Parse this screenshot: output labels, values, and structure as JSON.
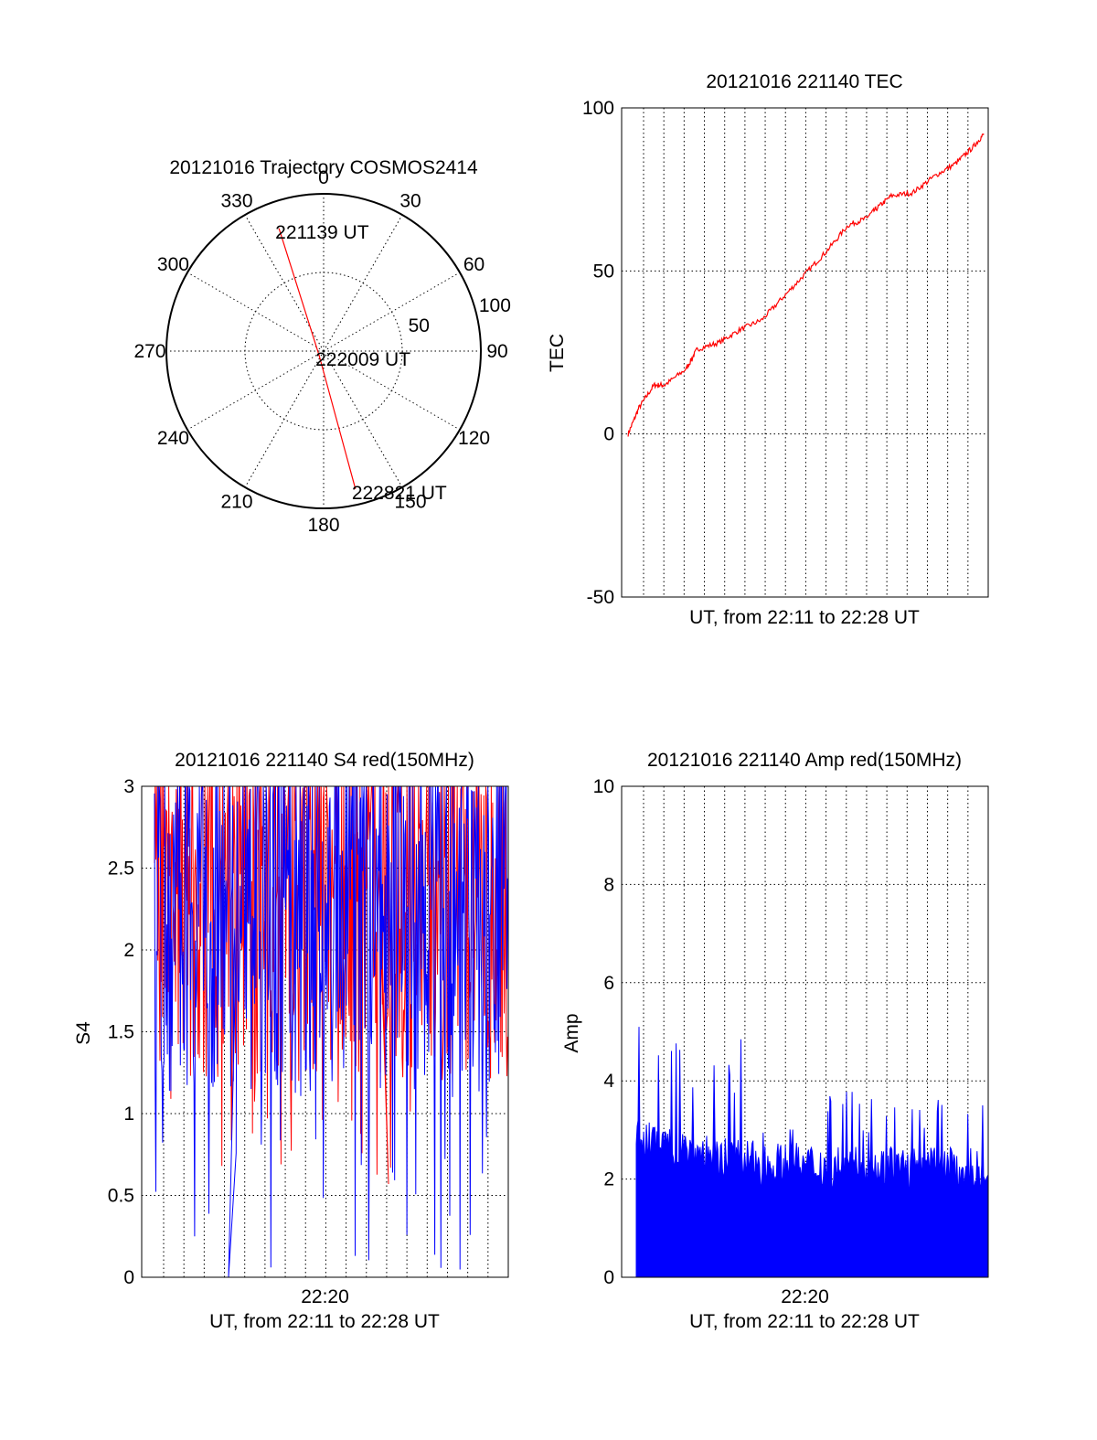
{
  "chart_data": [
    {
      "type": "polar",
      "title": "20121016 Trajectory COSMOS2414",
      "angle_labels": [
        "0",
        "30",
        "60",
        "90",
        "120",
        "150",
        "180",
        "210",
        "240",
        "270",
        "300",
        "330"
      ],
      "radial_labels": [
        "50",
        "100"
      ],
      "rlim": [
        0,
        100
      ],
      "grid": true,
      "series": [
        {
          "color": "#ff0000",
          "points": [
            {
              "az": 340,
              "r": 83,
              "label": "221139 UT"
            },
            {
              "az": 225,
              "r": 4,
              "label": "222009 UT"
            },
            {
              "az": 167,
              "r": 90,
              "label": "222821 UT"
            }
          ]
        }
      ]
    },
    {
      "type": "line",
      "title": "20121016 221140 TEC",
      "xlabel": "UT, from 22:11 to 22:28 UT",
      "ylabel": "TEC",
      "ylim": [
        -50,
        100
      ],
      "yticks": [
        "-50",
        "0",
        "50",
        "100"
      ],
      "xticks": [],
      "grid": true,
      "series": [
        {
          "color": "#ff0000",
          "x_minutes": [
            0.3,
            0.8,
            1.5,
            2.0,
            3.0,
            3.5,
            4.5,
            5.5,
            6.5,
            7.5,
            8.5,
            9.5,
            10.5,
            11.3,
            11.8,
            12.5,
            13.5,
            14.5,
            15.5,
            16.3,
            16.8
          ],
          "values": [
            0,
            8,
            15,
            15,
            20,
            26,
            28,
            32,
            35,
            42,
            49,
            56,
            64,
            66,
            69,
            73,
            74,
            79,
            83,
            88,
            92
          ]
        }
      ]
    },
    {
      "type": "line",
      "title": "20121016 221140 S4 red(150MHz)",
      "xlabel": "UT, from 22:11 to 22:28 UT",
      "ylabel": "S4",
      "ylim": [
        0,
        3
      ],
      "yticks": [
        "0",
        "0.5",
        "1",
        "1.5",
        "2",
        "2.5",
        "3"
      ],
      "xticks": [
        "22:20"
      ],
      "grid": true,
      "series": [
        {
          "color": "#ff0000",
          "mean": 2.15,
          "min": 0.57,
          "max": 3.0
        },
        {
          "color": "#0000ff",
          "mean": 2.05,
          "min": 0.0,
          "max": 3.0
        }
      ]
    },
    {
      "type": "bar",
      "title": "20121016 221140 Amp red(150MHz)",
      "xlabel": "UT, from 22:11 to 22:28 UT",
      "ylabel": "Amp",
      "ylim": [
        0,
        10
      ],
      "yticks": [
        "0",
        "2",
        "4",
        "6",
        "8",
        "10"
      ],
      "xticks": [
        "22:20"
      ],
      "grid": true,
      "series": [
        {
          "color": "#0000ff",
          "base": 2.2,
          "peak": 5.1,
          "end_level": 2.0
        }
      ]
    }
  ]
}
